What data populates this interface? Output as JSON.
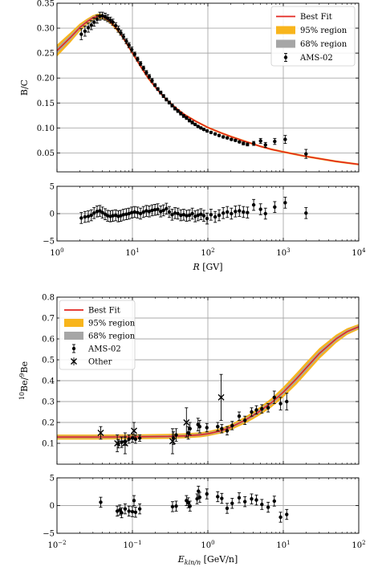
{
  "colors": {
    "fit": "#e3261f",
    "band95": "#f8b51c",
    "band68": "#a6a6a6",
    "data": "#000000",
    "grid": "#a9a9a9"
  },
  "chart_data": [
    {
      "id": "bc",
      "type": "line",
      "xscale": "log",
      "xlim": [
        1,
        10000
      ],
      "xticks": [
        1,
        10,
        100,
        1000,
        10000
      ],
      "xticklabels": [
        [
          "10",
          "0"
        ],
        [
          "10",
          "1"
        ],
        [
          "10",
          "2"
        ],
        [
          "10",
          "3"
        ],
        [
          "10",
          "4"
        ]
      ],
      "xlabel": "R [GV]",
      "main": {
        "ylabel": "B/C",
        "ylim": [
          0.012,
          0.35
        ],
        "yticks": [
          0.05,
          0.1,
          0.15,
          0.2,
          0.25,
          0.3,
          0.35
        ],
        "yticklabels": [
          "0.05",
          "0.10",
          "0.15",
          "0.20",
          "0.25",
          "0.30",
          "0.35"
        ],
        "legend": [
          "Best Fit",
          "95% region",
          "68% region",
          "AMS-02"
        ],
        "fit": {
          "x": [
            1,
            1.5,
            2,
            2.5,
            3,
            3.5,
            4,
            4.5,
            5,
            6,
            7,
            8,
            10,
            13,
            16,
            20,
            25,
            30,
            40,
            50,
            70,
            100,
            150,
            200,
            300,
            500,
            700,
            1000,
            2000,
            5000,
            10000
          ],
          "y": [
            0.255,
            0.281,
            0.301,
            0.313,
            0.321,
            0.324,
            0.323,
            0.319,
            0.314,
            0.301,
            0.288,
            0.274,
            0.25,
            0.222,
            0.201,
            0.182,
            0.165,
            0.153,
            0.137,
            0.126,
            0.113,
            0.101,
            0.09,
            0.083,
            0.074,
            0.063,
            0.057,
            0.052,
            0.043,
            0.033,
            0.027
          ],
          "band95": [
            0.012,
            0.01,
            0.008,
            0.006,
            0.005,
            0.005,
            0.005,
            0.004,
            0.004,
            0.004,
            0.003,
            0.003,
            0.003,
            0.003,
            0.003,
            0.002,
            0.002,
            0.002,
            0.002,
            0.002,
            0.002,
            0.002,
            0.002,
            0.002,
            0.002,
            0.002,
            0.002,
            0.002,
            0.002,
            0.002,
            0.002
          ],
          "band68": [
            0.006,
            0.005,
            0.004,
            0.003,
            0.003,
            0.0025,
            0.0025,
            0.002,
            0.002,
            0.002,
            0.0015,
            0.0015,
            0.0015,
            0.0015,
            0.0015,
            0.001,
            0.001,
            0.001,
            0.001,
            0.001,
            0.001,
            0.001,
            0.001,
            0.001,
            0.001,
            0.001,
            0.001,
            0.001,
            0.001,
            0.001,
            0.001
          ]
        },
        "points": {
          "x": [
            2.1,
            2.35,
            2.6,
            2.85,
            3.1,
            3.4,
            3.7,
            4.0,
            4.35,
            4.7,
            5.1,
            5.5,
            6.0,
            6.5,
            7.0,
            7.6,
            8.3,
            9.0,
            9.8,
            10.7,
            11.7,
            12.8,
            14.0,
            15.3,
            16.7,
            18.2,
            19.9,
            21.7,
            23.7,
            25.8,
            28.2,
            30.8,
            33.6,
            36.7,
            40.1,
            43.8,
            47.8,
            52.2,
            57.0,
            62.2,
            67.9,
            74.1,
            80.9,
            88.3,
            97.6,
            110,
            125,
            141,
            160,
            181,
            205,
            232,
            262,
            296,
            335,
            405,
            500,
            580,
            770,
            1060,
            2000
          ],
          "y": [
            0.288,
            0.294,
            0.301,
            0.306,
            0.312,
            0.318,
            0.324,
            0.325,
            0.323,
            0.32,
            0.316,
            0.312,
            0.305,
            0.298,
            0.291,
            0.283,
            0.274,
            0.266,
            0.257,
            0.248,
            0.238,
            0.229,
            0.22,
            0.211,
            0.203,
            0.195,
            0.186,
            0.178,
            0.171,
            0.164,
            0.157,
            0.151,
            0.145,
            0.139,
            0.134,
            0.129,
            0.124,
            0.12,
            0.115,
            0.111,
            0.107,
            0.103,
            0.1,
            0.097,
            0.094,
            0.091,
            0.088,
            0.085,
            0.082,
            0.08,
            0.077,
            0.075,
            0.072,
            0.069,
            0.067,
            0.069,
            0.074,
            0.066,
            0.073,
            0.077,
            0.048
          ],
          "err": [
            0.011,
            0.01,
            0.009,
            0.009,
            0.008,
            0.008,
            0.008,
            0.007,
            0.007,
            0.007,
            0.006,
            0.006,
            0.006,
            0.006,
            0.005,
            0.005,
            0.005,
            0.005,
            0.005,
            0.004,
            0.004,
            0.004,
            0.004,
            0.004,
            0.004,
            0.004,
            0.003,
            0.003,
            0.003,
            0.003,
            0.003,
            0.003,
            0.003,
            0.003,
            0.003,
            0.003,
            0.003,
            0.003,
            0.003,
            0.003,
            0.002,
            0.002,
            0.002,
            0.002,
            0.002,
            0.002,
            0.002,
            0.002,
            0.002,
            0.002,
            0.002,
            0.002,
            0.002,
            0.003,
            0.003,
            0.004,
            0.005,
            0.005,
            0.006,
            0.008,
            0.009
          ]
        }
      },
      "residual": {
        "ylim": [
          -5,
          5
        ],
        "yticks": [
          -5,
          0,
          5
        ],
        "yticklabels": [
          "−5",
          "0",
          "5"
        ],
        "points": {
          "x": [
            2.1,
            2.35,
            2.6,
            2.85,
            3.1,
            3.4,
            3.7,
            4.0,
            4.35,
            4.7,
            5.1,
            5.5,
            6.0,
            6.5,
            7.0,
            7.6,
            8.3,
            9.0,
            9.8,
            10.7,
            11.7,
            12.8,
            14.0,
            15.3,
            16.7,
            18.2,
            19.9,
            21.7,
            23.7,
            25.8,
            28.2,
            30.8,
            33.6,
            36.7,
            40.1,
            43.8,
            47.8,
            52.2,
            57.0,
            62.2,
            67.9,
            74.1,
            80.9,
            88.3,
            97.6,
            110,
            125,
            141,
            160,
            181,
            205,
            232,
            262,
            296,
            335,
            405,
            500,
            580,
            770,
            1060,
            2000
          ],
          "y": [
            -0.8,
            -0.6,
            -0.5,
            -0.3,
            0.1,
            0.4,
            0.5,
            0.2,
            -0.1,
            -0.4,
            -0.5,
            -0.4,
            -0.3,
            -0.5,
            -0.4,
            -0.2,
            -0.1,
            0.0,
            0.2,
            0.3,
            0.2,
            0.0,
            0.3,
            0.5,
            0.4,
            0.6,
            0.7,
            0.8,
            0.4,
            0.6,
            0.9,
            0.3,
            -0.2,
            0.1,
            0.0,
            -0.3,
            -0.2,
            -0.4,
            -0.3,
            0.0,
            -0.5,
            -0.3,
            -0.1,
            -0.4,
            -0.9,
            -0.2,
            -0.6,
            -0.3,
            0.1,
            0.3,
            0.0,
            0.4,
            0.5,
            0.3,
            0.2,
            1.6,
            0.8,
            0.0,
            1.2,
            2.0,
            0.1
          ],
          "err": [
            1.0,
            1.0,
            1.0,
            1.0,
            1.0,
            1.0,
            1.0,
            1.0,
            1.0,
            1.0,
            1.0,
            1.0,
            1.0,
            1.0,
            1.0,
            1.0,
            1.0,
            1.0,
            1.0,
            1.0,
            1.0,
            1.0,
            1.0,
            1.0,
            1.0,
            1.0,
            1.0,
            1.0,
            1.0,
            1.0,
            1.0,
            1.0,
            1.0,
            1.0,
            1.0,
            1.0,
            1.0,
            1.0,
            1.0,
            1.0,
            1.0,
            1.0,
            1.0,
            1.0,
            1.0,
            1.0,
            1.0,
            1.0,
            1.0,
            1.0,
            1.0,
            1.0,
            1.0,
            1.0,
            1.0,
            1.0,
            1.0,
            1.0,
            1.0,
            1.0,
            1.0
          ]
        }
      }
    },
    {
      "id": "be",
      "type": "line",
      "xscale": "log",
      "xlim": [
        0.01,
        100
      ],
      "xticks": [
        0.01,
        0.1,
        1,
        10,
        100
      ],
      "xticklabels": [
        [
          "10",
          "−2"
        ],
        [
          "10",
          "−1"
        ],
        [
          "10",
          "0"
        ],
        [
          "10",
          "1"
        ],
        [
          "10",
          "2"
        ]
      ],
      "xlabel": "E_kin/n [GeV/n]",
      "main": {
        "ylabel": "10Be/9Be",
        "ylim": [
          0.0,
          0.8
        ],
        "yticks": [
          0.1,
          0.2,
          0.3,
          0.4,
          0.5,
          0.6,
          0.7,
          0.8
        ],
        "yticklabels": [
          "0.1",
          "0.2",
          "0.3",
          "0.4",
          "0.5",
          "0.6",
          "0.7",
          "0.8"
        ],
        "legend": [
          "Best Fit",
          "95% region",
          "68% region",
          "AMS-02",
          "Other"
        ],
        "fit": {
          "x": [
            0.01,
            0.03,
            0.1,
            0.3,
            0.5,
            0.8,
            1.0,
            1.5,
            2,
            3,
            4,
            5,
            7,
            10,
            15,
            20,
            30,
            50,
            70,
            100
          ],
          "y": [
            0.13,
            0.13,
            0.131,
            0.133,
            0.136,
            0.141,
            0.146,
            0.16,
            0.177,
            0.208,
            0.234,
            0.257,
            0.295,
            0.345,
            0.41,
            0.46,
            0.53,
            0.6,
            0.635,
            0.658
          ],
          "band95": [
            0.012,
            0.012,
            0.012,
            0.012,
            0.012,
            0.012,
            0.012,
            0.013,
            0.014,
            0.016,
            0.018,
            0.02,
            0.022,
            0.025,
            0.028,
            0.028,
            0.026,
            0.02,
            0.016,
            0.013
          ],
          "band68": [
            0.006,
            0.006,
            0.006,
            0.006,
            0.006,
            0.006,
            0.006,
            0.007,
            0.007,
            0.008,
            0.009,
            0.01,
            0.011,
            0.012,
            0.014,
            0.014,
            0.013,
            0.01,
            0.008,
            0.007
          ]
        },
        "points": {
          "x": [
            0.065,
            0.072,
            0.08,
            0.09,
            0.1,
            0.11,
            0.125,
            0.35,
            0.38,
            0.55,
            0.58,
            0.74,
            0.78,
            0.97,
            1.35,
            1.53,
            1.8,
            2.1,
            2.6,
            3.1,
            3.8,
            4.4,
            5.2,
            6.3,
            7.6,
            9.2,
            11.1
          ],
          "y": [
            0.098,
            0.105,
            0.11,
            0.12,
            0.125,
            0.12,
            0.125,
            0.125,
            0.14,
            0.15,
            0.17,
            0.19,
            0.18,
            0.175,
            0.18,
            0.17,
            0.16,
            0.185,
            0.23,
            0.21,
            0.25,
            0.26,
            0.265,
            0.27,
            0.32,
            0.29,
            0.3
          ],
          "err": [
            0.02,
            0.025,
            0.02,
            0.02,
            0.02,
            0.02,
            0.015,
            0.03,
            0.03,
            0.03,
            0.03,
            0.03,
            0.03,
            0.02,
            0.02,
            0.02,
            0.02,
            0.02,
            0.02,
            0.02,
            0.02,
            0.02,
            0.02,
            0.02,
            0.03,
            0.03,
            0.04
          ]
        },
        "other": {
          "x": [
            0.038,
            0.063,
            0.08,
            0.105,
            0.34,
            0.52,
            1.5
          ],
          "y": [
            0.15,
            0.1,
            0.1,
            0.16,
            0.11,
            0.2,
            0.32
          ],
          "err": [
            0.03,
            0.04,
            0.05,
            0.04,
            0.06,
            0.07,
            0.11
          ]
        }
      },
      "residual": {
        "ylim": [
          -5,
          5
        ],
        "yticks": [
          -5,
          0,
          5
        ],
        "yticklabels": [
          "−5",
          "0",
          "5"
        ],
        "points": {
          "x": [
            0.038,
            0.063,
            0.068,
            0.072,
            0.08,
            0.09,
            0.1,
            0.105,
            0.11,
            0.125,
            0.34,
            0.38,
            0.52,
            0.55,
            0.58,
            0.72,
            0.75,
            0.78,
            0.97,
            1.35,
            1.53,
            1.8,
            2.1,
            2.6,
            3.1,
            3.8,
            4.4,
            5.2,
            6.3,
            7.6,
            9.2,
            11.1
          ],
          "y": [
            0.6,
            -1.0,
            -0.8,
            -1.3,
            -0.6,
            -1.0,
            -1.1,
            0.9,
            -1.2,
            -0.6,
            -0.2,
            -0.1,
            0.9,
            0.5,
            -0.1,
            1.2,
            2.6,
            1.5,
            2.1,
            1.6,
            1.3,
            -0.5,
            0.4,
            1.4,
            0.7,
            1.2,
            1.0,
            0.2,
            -0.3,
            0.8,
            -2.1,
            -1.6
          ],
          "err": [
            0.9,
            0.9,
            0.9,
            0.9,
            0.9,
            0.9,
            0.9,
            0.9,
            0.9,
            0.9,
            0.9,
            0.9,
            0.9,
            0.9,
            0.9,
            0.9,
            0.9,
            0.9,
            0.9,
            0.9,
            0.9,
            0.9,
            0.9,
            0.9,
            0.9,
            0.9,
            0.9,
            0.9,
            0.9,
            0.9,
            0.9,
            0.9
          ]
        }
      }
    }
  ]
}
